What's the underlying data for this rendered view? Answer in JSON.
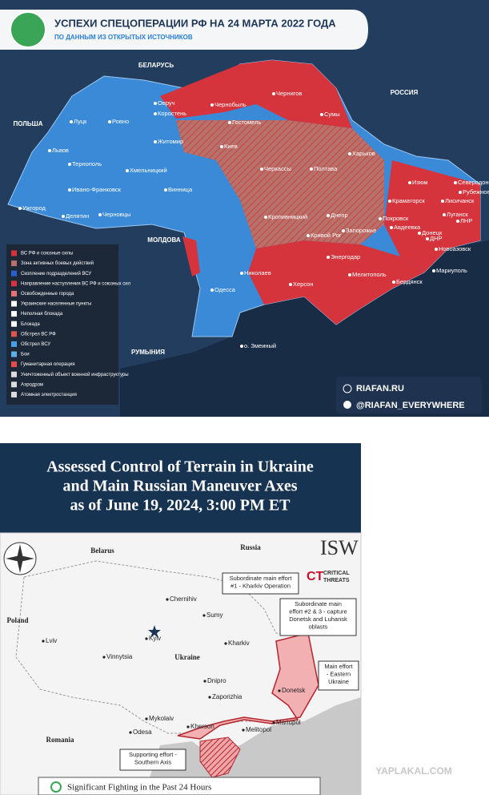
{
  "map1": {
    "title": "УСПЕХИ СПЕЦОПЕРАЦИИ РФ НА 24 МАРТА 2022 ГОДА",
    "subtitle": "ПО ДАННЫМ ИЗ ОТКРЫТЫХ ИСТОЧНИКОВ",
    "countries": [
      "БЕЛАРУСЬ",
      "РОССИЯ",
      "ПОЛЬША",
      "МОЛДОВА",
      "РУМЫНИЯ"
    ],
    "cities": [
      "Овруч",
      "Чернобыль",
      "Чернигов",
      "Сумы",
      "Коростень",
      "Гостомель",
      "Луцк",
      "Ровно",
      "Житомир",
      "Киев",
      "Харьков",
      "Изюм",
      "Рубежное",
      "Северодонецк",
      "Лисичанск",
      "Тернополь",
      "Хмельницкий",
      "Черкассы",
      "Полтава",
      "Львов",
      "Ивано-Франковск",
      "Винница",
      "Ужгород",
      "Делятин",
      "Черновцы",
      "Кропивницкий",
      "Днепр",
      "Краматорск",
      "Покровск",
      "Авдеевка",
      "Донецк",
      "Луганск",
      "Новоазовск",
      "Кривой Рог",
      "Запорожье",
      "Энергодар",
      "Николаев",
      "Херсон",
      "Мелитополь",
      "Бердянск",
      "Мариуполь",
      "Одесса",
      "о. Змеиный",
      "ЛНР",
      "ДНР"
    ],
    "legend": [
      "ВС РФ и союзные силы",
      "Зона активных боевых действий",
      "Скопление подразделений ВСУ",
      "Направление наступления ВС РФ и союзных сил",
      "Освобожденные города",
      "Украинские населенные пункты",
      "Неполная блокада",
      "Блокада",
      "Обстрел ВС РФ",
      "Обстрел ВСУ",
      "Бои",
      "Гуманитарная операция",
      "Уничтоженный объект военной инфраструктуры",
      "Аэродром",
      "Атомная электростанция"
    ],
    "site": "RIAFAN.RU",
    "handle": "@RIAFAN_EVERYWHERE"
  },
  "map2": {
    "title": [
      "Assessed Control of Terrain in Ukraine",
      "and Main Russian Maneuver Axes",
      "as of June 19, 2024, 3:00 PM ET"
    ],
    "countries": [
      "Belarus",
      "Russia",
      "Poland",
      "Romania",
      "Ukraine"
    ],
    "cities": [
      "Chernihiv",
      "Sumy",
      "Kyiv",
      "Kharkiv",
      "Lviv",
      "Vinnytsia",
      "Dnipro",
      "Zaporizhia",
      "Donetsk",
      "Mariupol",
      "Mykolaiv",
      "Kherson",
      "Odesa",
      "Melitopol"
    ],
    "annotations": [
      [
        "Subordinate main effort",
        "#1 - Kharkiv Operation"
      ],
      [
        "Subordinate main",
        "effort #2 & 3 - capture",
        "Donetsk and Luhansk",
        "oblasts"
      ],
      [
        "Main effort",
        "- Eastern",
        "Ukraine"
      ],
      [
        "Supporting effort -",
        "Southern Axis"
      ]
    ],
    "logo1": "ISW",
    "logo2": [
      "CT",
      "CRITICAL",
      "THREATS"
    ],
    "legend": "Significant Fighting in the Past 24 Hours"
  },
  "watermark": "YAPLAKAL.COM"
}
